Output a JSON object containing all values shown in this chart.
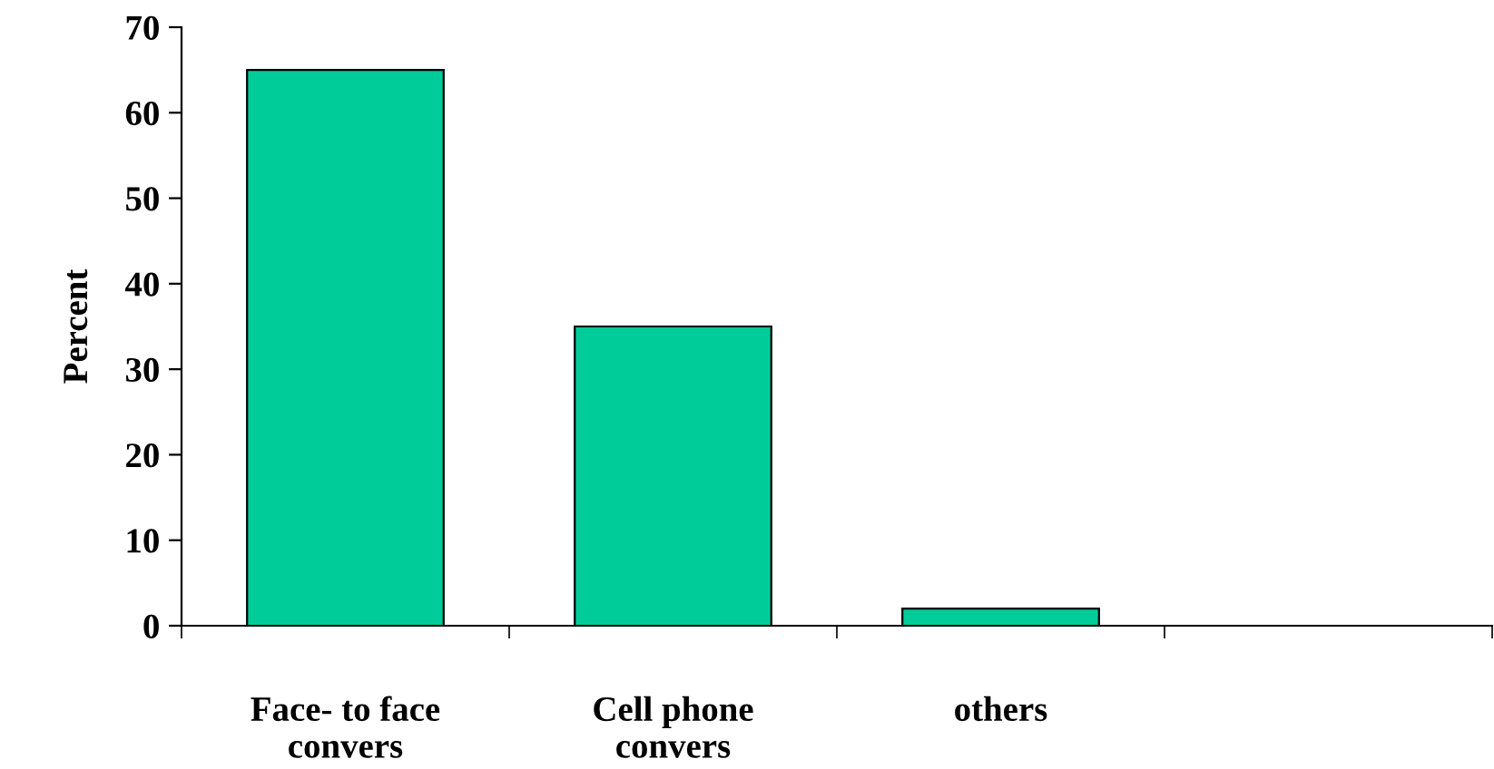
{
  "chart_data": {
    "type": "bar",
    "ylabel": "Percent",
    "categories": [
      "Face- to face\nconvers",
      "Cell phone\nconvers",
      "others",
      null
    ],
    "values": [
      65,
      35,
      2,
      null
    ],
    "color": "#00cc99",
    "ylim": [
      0,
      70
    ],
    "yticks": [
      0,
      10,
      20,
      30,
      40,
      50,
      60,
      70
    ],
    "grid": false,
    "legend": false
  }
}
